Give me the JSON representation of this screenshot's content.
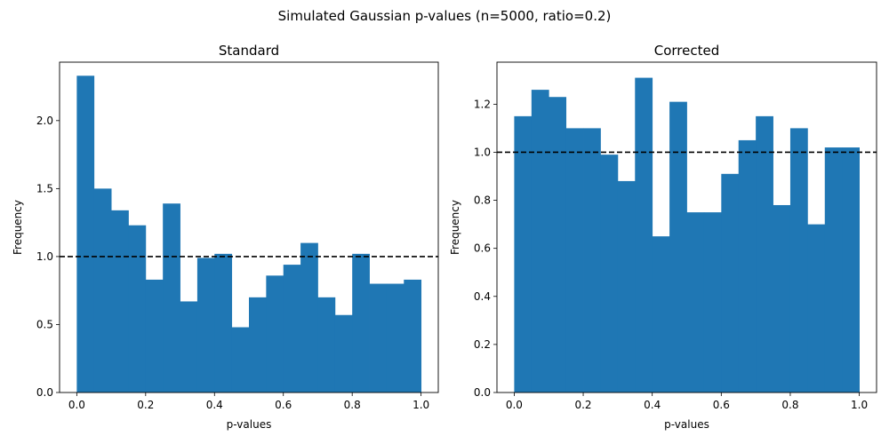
{
  "figure": {
    "title": "Simulated Gaussian p-values (n=5000, ratio=0.2)"
  },
  "chart_data": [
    {
      "type": "bar",
      "title": "Standard",
      "xlabel": "p-values",
      "ylabel": "Frequency",
      "bin_edges": [
        0.0,
        0.05,
        0.1,
        0.15,
        0.2,
        0.25,
        0.3,
        0.35,
        0.4,
        0.45,
        0.5,
        0.55,
        0.6,
        0.65,
        0.7,
        0.75,
        0.8,
        0.85,
        0.9,
        0.95,
        1.0
      ],
      "values": [
        2.33,
        1.5,
        1.34,
        1.23,
        0.83,
        1.39,
        0.67,
        0.99,
        1.02,
        0.48,
        0.7,
        0.86,
        0.94,
        1.1,
        0.7,
        0.57,
        1.02,
        0.8,
        0.8,
        0.83
      ],
      "xlim": [
        -0.05,
        1.05
      ],
      "ylim": [
        0,
        2.43
      ],
      "xticks": [
        "0.0",
        "0.2",
        "0.4",
        "0.6",
        "0.8",
        "1.0"
      ],
      "yticks": [
        "0.0",
        "0.5",
        "1.0",
        "1.5",
        "2.0"
      ],
      "reference_line": {
        "y": 1.0,
        "style": "dashed",
        "color": "#000000"
      },
      "bar_color": "#1f77b4"
    },
    {
      "type": "bar",
      "title": "Corrected",
      "xlabel": "p-values",
      "ylabel": "Frequency",
      "bin_edges": [
        0.0,
        0.05,
        0.1,
        0.15,
        0.2,
        0.25,
        0.3,
        0.35,
        0.4,
        0.45,
        0.5,
        0.55,
        0.6,
        0.65,
        0.7,
        0.75,
        0.8,
        0.85,
        0.9,
        0.95,
        1.0
      ],
      "values": [
        1.15,
        1.26,
        1.23,
        1.1,
        1.1,
        0.99,
        0.88,
        1.31,
        0.65,
        1.21,
        0.75,
        0.75,
        0.91,
        1.05,
        1.15,
        0.78,
        1.1,
        0.7,
        1.02,
        1.02
      ],
      "xlim": [
        -0.05,
        1.05
      ],
      "ylim": [
        0,
        1.375
      ],
      "xticks": [
        "0.0",
        "0.2",
        "0.4",
        "0.6",
        "0.8",
        "1.0"
      ],
      "yticks": [
        "0.0",
        "0.2",
        "0.4",
        "0.6",
        "0.8",
        "1.0",
        "1.2"
      ],
      "reference_line": {
        "y": 1.0,
        "style": "dashed",
        "color": "#000000"
      },
      "bar_color": "#1f77b4"
    }
  ]
}
